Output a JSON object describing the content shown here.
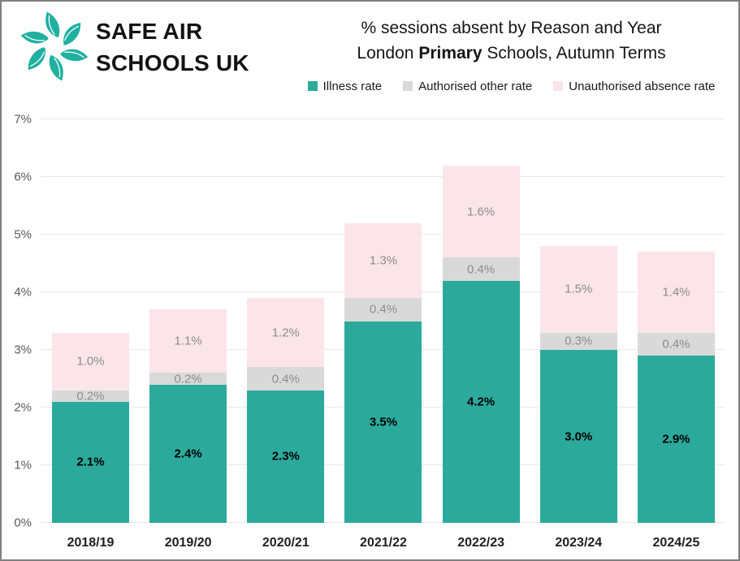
{
  "brand": {
    "line1": "SAFE AIR",
    "line2": "SCHOOLS UK",
    "logo_color": "#1fb0a0"
  },
  "title": {
    "line1": "% sessions absent by Reason and Year",
    "line2_prefix": "London ",
    "line2_bold": "Primary",
    "line2_suffix": " Schools, Autumn Terms"
  },
  "colors": {
    "illness": "#2baa9c",
    "authorised_other": "#d9d9d9",
    "unauthorised": "#fbe5e9",
    "gridline": "#e9e9e9",
    "axis_label": "#595959",
    "segment_label_gray": "#8c8c8c",
    "border": "#7f7f7f"
  },
  "chart_data": {
    "type": "bar",
    "stacked": true,
    "title": "% sessions absent by Reason and Year — London Primary Schools, Autumn Terms",
    "xlabel": "",
    "ylabel": "",
    "ylim": [
      0,
      7
    ],
    "grid": true,
    "legend_position": "top",
    "y_ticks": [
      "0%",
      "1%",
      "2%",
      "3%",
      "4%",
      "5%",
      "6%",
      "7%"
    ],
    "categories": [
      "2018/19",
      "2019/20",
      "2020/21",
      "2021/22",
      "2022/23",
      "2023/24",
      "2024/25"
    ],
    "series": [
      {
        "name": "Illness rate",
        "color": "#2baa9c",
        "label_style": "dark",
        "values": [
          2.1,
          2.4,
          2.3,
          3.5,
          4.2,
          3.0,
          2.9
        ],
        "labels": [
          "2.1%",
          "2.4%",
          "2.3%",
          "3.5%",
          "4.2%",
          "3.0%",
          "2.9%"
        ]
      },
      {
        "name": "Authorised other rate",
        "color": "#d9d9d9",
        "label_style": "gray",
        "values": [
          0.2,
          0.2,
          0.4,
          0.4,
          0.4,
          0.3,
          0.4
        ],
        "labels": [
          "0.2%",
          "0.2%",
          "0.4%",
          "0.4%",
          "0.4%",
          "0.3%",
          "0.4%"
        ]
      },
      {
        "name": "Unauthorised absence rate",
        "color": "#fbe5e9",
        "label_style": "gray",
        "values": [
          1.0,
          1.1,
          1.2,
          1.3,
          1.6,
          1.5,
          1.4
        ],
        "labels": [
          "1.0%",
          "1.1%",
          "1.2%",
          "1.3%",
          "1.6%",
          "1.5%",
          "1.4%"
        ]
      }
    ]
  }
}
